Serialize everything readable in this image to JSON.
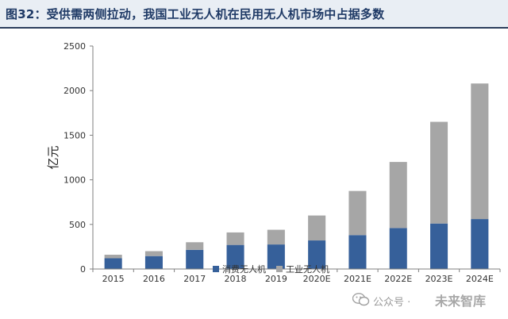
{
  "figure": {
    "title": "图32：受供需两侧拉动，我国工业无人机在民用无人机市场中占据多数"
  },
  "watermark": {
    "account": "公众号 ·",
    "name": "未来智库"
  },
  "chart_data": {
    "type": "bar",
    "stacked": true,
    "categories": [
      "2015",
      "2016",
      "2017",
      "2018",
      "2019",
      "2020E",
      "2021E",
      "2022E",
      "2023E",
      "2024E"
    ],
    "series": [
      {
        "name": "消费无人机",
        "color": "#36609a",
        "values": [
          120,
          145,
          215,
          270,
          275,
          320,
          380,
          460,
          510,
          560
        ]
      },
      {
        "name": "工业无人机",
        "color": "#a6a6a6",
        "values": [
          40,
          55,
          85,
          140,
          165,
          280,
          495,
          740,
          1140,
          1520
        ]
      }
    ],
    "ylabel": "亿元",
    "xlabel": "",
    "ylim": [
      0,
      2500
    ],
    "yticks": [
      0,
      500,
      1000,
      1500,
      2000,
      2500
    ],
    "grid": false,
    "legend_position": "bottom-left"
  }
}
